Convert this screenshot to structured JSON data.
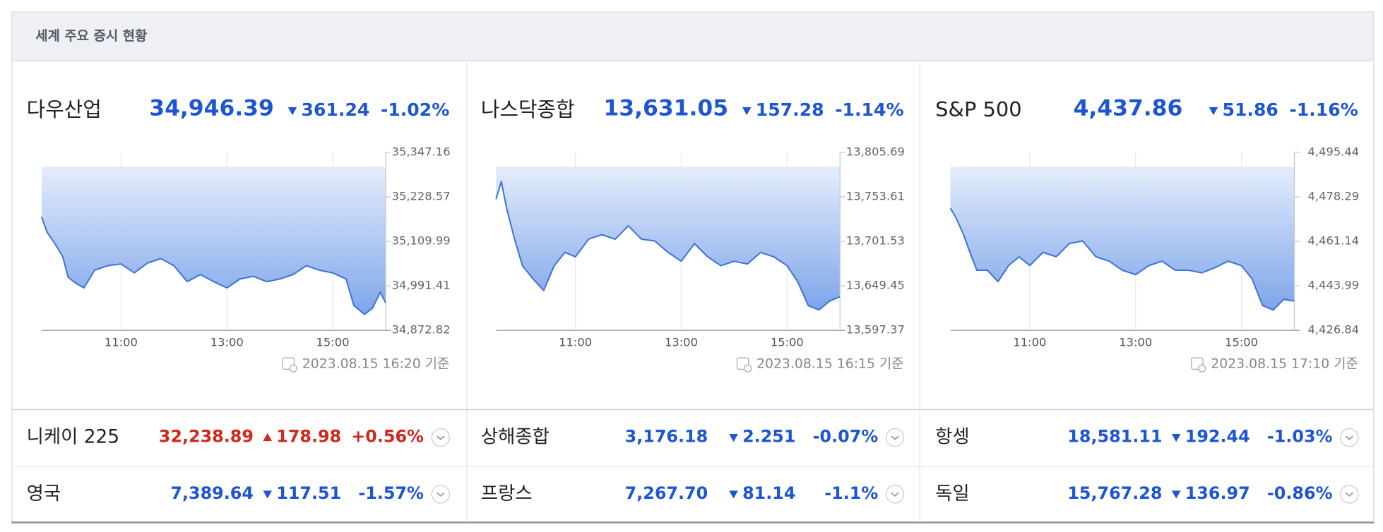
{
  "header": {
    "title": "세계 주요 증시 현황"
  },
  "main_indices": [
    {
      "name": "다우산업",
      "price": "34,946.39",
      "change": "361.24",
      "change_pct": "-1.02%",
      "direction": "down",
      "timestamp": "2023.08.15 16:20 기준",
      "chart_data": {
        "type": "line",
        "color": "#3b73d6",
        "x": [
          9.5,
          9.6,
          9.75,
          9.9,
          10.0,
          10.15,
          10.3,
          10.5,
          10.75,
          11.0,
          11.25,
          11.5,
          11.75,
          12.0,
          12.25,
          12.5,
          12.75,
          13.0,
          13.25,
          13.5,
          13.75,
          14.0,
          14.25,
          14.5,
          14.75,
          15.0,
          15.25,
          15.4,
          15.6,
          15.75,
          15.9,
          16.0
        ],
        "values": [
          35174.9,
          35134.8,
          35104.0,
          35068.7,
          35014.4,
          34997.9,
          34986.0,
          35033.0,
          35045.0,
          35049.8,
          35026.0,
          35052.0,
          35064.0,
          35045.0,
          35002.6,
          35021.5,
          35002.6,
          34986.0,
          35009.7,
          35016.8,
          35002.6,
          35009.7,
          35021.5,
          35045.0,
          35033.0,
          35026.0,
          35009.7,
          34938.9,
          34915.3,
          34931.8,
          34974.3,
          34946.0
        ],
        "xlim": [
          9.5,
          16.0
        ],
        "xticks": [
          {
            "value": 11,
            "label": "11:00"
          },
          {
            "value": 13,
            "label": "13:00"
          },
          {
            "value": 15,
            "label": "15:00"
          }
        ],
        "ylim": [
          34872.82,
          35347.16
        ],
        "yticks": [
          {
            "value": 34872.82,
            "label": "34,872.82"
          },
          {
            "value": 34991.41,
            "label": "34,991.41"
          },
          {
            "value": 35109.99,
            "label": "35,109.99"
          },
          {
            "value": 35228.57,
            "label": "35,228.57"
          },
          {
            "value": 35347.16,
            "label": "35,347.16"
          }
        ]
      }
    },
    {
      "name": "나스닥종합",
      "price": "13,631.05",
      "change": "157.28",
      "change_pct": "-1.14%",
      "direction": "down",
      "timestamp": "2023.08.15 16:15 기준",
      "chart_data": {
        "type": "line",
        "color": "#3b73d6",
        "x": [
          9.5,
          9.6,
          9.7,
          9.85,
          10.0,
          10.2,
          10.4,
          10.6,
          10.8,
          11.0,
          11.25,
          11.5,
          11.75,
          12.0,
          12.25,
          12.5,
          12.75,
          13.0,
          13.25,
          13.5,
          13.75,
          14.0,
          14.25,
          14.5,
          14.75,
          15.0,
          15.2,
          15.4,
          15.6,
          15.8,
          16.0
        ],
        "values": [
          13750.8,
          13771.5,
          13740.4,
          13704.1,
          13673.0,
          13657.5,
          13644.0,
          13673.0,
          13688.6,
          13683.4,
          13704.1,
          13709.3,
          13704.0,
          13719.7,
          13704.0,
          13702.0,
          13688.6,
          13678.2,
          13698.9,
          13683.4,
          13673.0,
          13678.2,
          13675.0,
          13688.6,
          13683.4,
          13673.0,
          13654.3,
          13626.4,
          13621.2,
          13631.5,
          13636.8
        ],
        "xlim": [
          9.5,
          16.0
        ],
        "xticks": [
          {
            "value": 11,
            "label": "11:00"
          },
          {
            "value": 13,
            "label": "13:00"
          },
          {
            "value": 15,
            "label": "15:00"
          }
        ],
        "ylim": [
          13597.37,
          13805.69
        ],
        "yticks": [
          {
            "value": 13597.37,
            "label": "13,597.37"
          },
          {
            "value": 13649.45,
            "label": "13,649.45"
          },
          {
            "value": 13701.53,
            "label": "13,701.53"
          },
          {
            "value": 13753.61,
            "label": "13,753.61"
          },
          {
            "value": 13805.69,
            "label": "13,805.69"
          }
        ]
      }
    },
    {
      "name": "S&P 500",
      "price": "4,437.86",
      "change": "51.86",
      "change_pct": "-1.16%",
      "direction": "down",
      "timestamp": "2023.08.15 17:10 기준",
      "chart_data": {
        "type": "line",
        "color": "#3b73d6",
        "x": [
          9.5,
          9.6,
          9.75,
          9.9,
          10.0,
          10.2,
          10.4,
          10.6,
          10.8,
          11.0,
          11.25,
          11.5,
          11.75,
          12.0,
          12.25,
          12.5,
          12.75,
          13.0,
          13.25,
          13.5,
          13.75,
          14.0,
          14.25,
          14.5,
          14.75,
          15.0,
          15.2,
          15.4,
          15.6,
          15.8,
          16.0
        ],
        "values": [
          4473.9,
          4470.5,
          4463.7,
          4455.2,
          4450.0,
          4450.0,
          4445.6,
          4451.8,
          4455.2,
          4451.8,
          4456.9,
          4455.2,
          4460.3,
          4461.3,
          4455.2,
          4453.5,
          4450.0,
          4448.3,
          4451.8,
          4453.5,
          4450.0,
          4450.0,
          4449.0,
          4451.0,
          4453.5,
          4451.8,
          4446.7,
          4436.4,
          4434.7,
          4438.8,
          4438.1
        ],
        "xlim": [
          9.5,
          16.0
        ],
        "xticks": [
          {
            "value": 11,
            "label": "11:00"
          },
          {
            "value": 13,
            "label": "13:00"
          },
          {
            "value": 15,
            "label": "15:00"
          }
        ],
        "ylim": [
          4426.84,
          4495.44
        ],
        "yticks": [
          {
            "value": 4426.84,
            "label": "4,426.84"
          },
          {
            "value": 4443.99,
            "label": "4,443.99"
          },
          {
            "value": 4461.14,
            "label": "4,461.14"
          },
          {
            "value": 4478.29,
            "label": "4,478.29"
          },
          {
            "value": 4495.44,
            "label": "4,495.44"
          }
        ]
      }
    }
  ],
  "other_indices": [
    [
      {
        "name": "니케이 225",
        "price": "32,238.89",
        "change": "178.98",
        "change_pct": "+0.56%",
        "direction": "up"
      },
      {
        "name": "상해종합",
        "price": "3,176.18",
        "change": "2.251",
        "change_pct": "-0.07%",
        "direction": "down"
      },
      {
        "name": "항셍",
        "price": "18,581.11",
        "change": "192.44",
        "change_pct": "-1.03%",
        "direction": "down"
      }
    ],
    [
      {
        "name": "영국",
        "price": "7,389.64",
        "change": "117.51",
        "change_pct": "-1.57%",
        "direction": "down"
      },
      {
        "name": "프랑스",
        "price": "7,267.70",
        "change": "81.14",
        "change_pct": "-1.1%",
        "direction": "down"
      },
      {
        "name": "독일",
        "price": "15,767.28",
        "change": "136.97",
        "change_pct": "-0.86%",
        "direction": "down"
      }
    ]
  ]
}
